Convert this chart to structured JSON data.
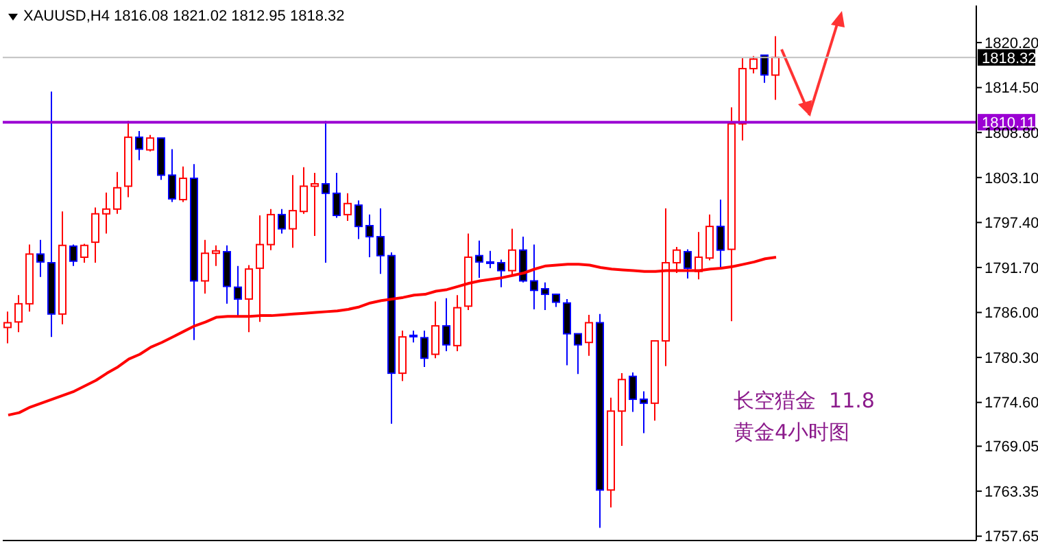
{
  "chart_data": {
    "type": "candlestick",
    "title": "XAUUSD,H4 1816.08 1821.02 1812.95 1818.32",
    "categories": [
      null,
      null,
      null,
      null,
      null,
      null,
      null,
      null,
      null,
      null,
      null,
      null,
      null,
      null,
      null,
      null,
      null,
      null,
      null,
      null,
      null,
      null,
      null,
      null,
      null,
      null,
      null,
      null,
      null,
      null,
      null,
      null,
      null,
      null,
      null,
      null,
      null,
      null,
      null,
      null,
      null,
      null,
      null,
      null,
      null,
      null,
      null,
      null,
      null,
      null,
      null,
      null,
      null,
      null,
      null,
      null,
      null,
      null,
      null,
      null,
      null,
      null,
      null,
      null,
      null,
      null,
      null,
      null,
      null,
      null,
      null
    ],
    "ohlc": [
      [
        1784.1,
        1786.1,
        1782.1,
        1784.7
      ],
      [
        1784.8,
        1788.2,
        1783.5,
        1787.1
      ],
      [
        1787.1,
        1794.6,
        1786.1,
        1793.4
      ],
      [
        1793.4,
        1795.2,
        1790.5,
        1792.4
      ],
      [
        1792.3,
        1814.0,
        1782.9,
        1785.8
      ],
      [
        1785.8,
        1798.8,
        1784.5,
        1794.5
      ],
      [
        1794.4,
        1794.6,
        1791.9,
        1792.5
      ],
      [
        1793.0,
        1794.7,
        1792.3,
        1794.5
      ],
      [
        1794.9,
        1799.3,
        1792.3,
        1798.5
      ],
      [
        1798.5,
        1801.2,
        1796.0,
        1799.1
      ],
      [
        1799.1,
        1803.8,
        1798.5,
        1801.8
      ],
      [
        1802.0,
        1810.3,
        1800.6,
        1808.2
      ],
      [
        1808.2,
        1809.0,
        1805.3,
        1806.7
      ],
      [
        1806.6,
        1808.5,
        1806.4,
        1808.1
      ],
      [
        1808.1,
        1808.1,
        1802.8,
        1803.4
      ],
      [
        1803.4,
        1806.7,
        1800.0,
        1800.4
      ],
      [
        1800.3,
        1804.5,
        1800.0,
        1803.0
      ],
      [
        1803.0,
        1804.8,
        1782.5,
        1790.0
      ],
      [
        1790.0,
        1795.2,
        1788.4,
        1793.5
      ],
      [
        1793.5,
        1794.5,
        1791.9,
        1793.8
      ],
      [
        1793.7,
        1794.5,
        1787.1,
        1789.3
      ],
      [
        1789.2,
        1791.9,
        1785.5,
        1787.7
      ],
      [
        1787.7,
        1792.0,
        1783.5,
        1791.5
      ],
      [
        1791.6,
        1798.3,
        1784.8,
        1794.6
      ],
      [
        1794.6,
        1799.1,
        1793.9,
        1798.4
      ],
      [
        1798.4,
        1799.1,
        1796.0,
        1796.6
      ],
      [
        1796.6,
        1803.4,
        1794.2,
        1798.9
      ],
      [
        1798.8,
        1804.4,
        1798.5,
        1802.0
      ],
      [
        1802.0,
        1803.7,
        1795.7,
        1802.3
      ],
      [
        1802.3,
        1810.3,
        1792.3,
        1801.1
      ],
      [
        1801.1,
        1803.7,
        1798.0,
        1798.3
      ],
      [
        1798.4,
        1801.1,
        1797.6,
        1799.8
      ],
      [
        1799.6,
        1800.2,
        1795.3,
        1796.9
      ],
      [
        1797.0,
        1798.4,
        1793.0,
        1795.6
      ],
      [
        1795.6,
        1799.2,
        1790.9,
        1793.2
      ],
      [
        1793.2,
        1793.6,
        1771.9,
        1778.3
      ],
      [
        1778.3,
        1783.7,
        1777.3,
        1782.9
      ],
      [
        1783.1,
        1783.7,
        1782.2,
        1783.0
      ],
      [
        1782.8,
        1783.7,
        1779.1,
        1780.2
      ],
      [
        1780.7,
        1787.4,
        1780.2,
        1784.3
      ],
      [
        1784.3,
        1787.8,
        1781.1,
        1781.9
      ],
      [
        1781.8,
        1788.2,
        1781.1,
        1786.6
      ],
      [
        1786.8,
        1796.0,
        1786.3,
        1793.0
      ],
      [
        1793.2,
        1795.1,
        1790.4,
        1792.4
      ],
      [
        1792.4,
        1793.8,
        1791.6,
        1792.3
      ],
      [
        1792.3,
        1792.7,
        1789.2,
        1791.3
      ],
      [
        1791.3,
        1796.6,
        1790.7,
        1793.9
      ],
      [
        1793.9,
        1795.6,
        1789.8,
        1790.0
      ],
      [
        1790.0,
        1794.6,
        1786.4,
        1788.8
      ],
      [
        1789.0,
        1789.8,
        1786.3,
        1788.3
      ],
      [
        1788.3,
        1788.4,
        1786.7,
        1787.3
      ],
      [
        1787.2,
        1787.7,
        1779.3,
        1783.3
      ],
      [
        1783.3,
        1783.3,
        1778.2,
        1781.9
      ],
      [
        1782.2,
        1785.7,
        1780.5,
        1784.7
      ],
      [
        1784.7,
        1785.8,
        1758.7,
        1763.5
      ],
      [
        1763.5,
        1775.2,
        1761.3,
        1773.5
      ],
      [
        1773.5,
        1778.3,
        1769.1,
        1777.5
      ],
      [
        1777.9,
        1778.4,
        1773.4,
        1775.0
      ],
      [
        1775.0,
        1776.0,
        1770.7,
        1774.5
      ],
      [
        1774.5,
        1782.4,
        1772.3,
        1782.4
      ],
      [
        1782.4,
        1799.2,
        1779.2,
        1792.3
      ],
      [
        1792.3,
        1794.3,
        1791.0,
        1793.9
      ],
      [
        1793.7,
        1794.0,
        1790.3,
        1791.6
      ],
      [
        1791.2,
        1796.2,
        1790.2,
        1793.0
      ],
      [
        1792.9,
        1798.4,
        1792.6,
        1796.9
      ],
      [
        1796.9,
        1800.3,
        1791.6,
        1793.9
      ],
      [
        1794.0,
        1812.0,
        1784.9,
        1809.9
      ],
      [
        1809.9,
        1818.2,
        1807.8,
        1816.9
      ],
      [
        1816.9,
        1818.5,
        1816.3,
        1818.1
      ],
      [
        1818.6,
        1818.6,
        1815.1,
        1816.1
      ],
      [
        1816.08,
        1821.02,
        1812.95,
        1818.32
      ]
    ],
    "colors": [
      "#ff0000",
      "#ff0000",
      "#ff0000",
      "#0000ff",
      "#0000ff",
      "#ff0000",
      "#0000ff",
      "#ff0000",
      "#ff0000",
      "#ff0000",
      "#ff0000",
      "#ff0000",
      "#0000ff",
      "#ff0000",
      "#0000ff",
      "#0000ff",
      "#ff0000",
      "#0000ff",
      "#ff0000",
      "#ff0000",
      "#0000ff",
      "#0000ff",
      "#ff0000",
      "#ff0000",
      "#ff0000",
      "#0000ff",
      "#ff0000",
      "#ff0000",
      "#ff0000",
      "#0000ff",
      "#0000ff",
      "#ff0000",
      "#0000ff",
      "#0000ff",
      "#0000ff",
      "#0000ff",
      "#ff0000",
      "#0000ff",
      "#0000ff",
      "#ff0000",
      "#0000ff",
      "#ff0000",
      "#ff0000",
      "#0000ff",
      "#0000ff",
      "#0000ff",
      "#ff0000",
      "#0000ff",
      "#0000ff",
      "#0000ff",
      "#0000ff",
      "#0000ff",
      "#0000ff",
      "#ff0000",
      "#0000ff",
      "#ff0000",
      "#ff0000",
      "#0000ff",
      "#0000ff",
      "#ff0000",
      "#ff0000",
      "#ff0000",
      "#0000ff",
      "#ff0000",
      "#ff0000",
      "#0000ff",
      "#ff0000",
      "#ff0000",
      "#ff0000",
      "#0000ff",
      "#ff0000"
    ],
    "series": [
      {
        "type": "line",
        "color": "#ff0000",
        "values": [
          1773.0,
          1773.3,
          1774.0,
          1774.5,
          1775.0,
          1775.5,
          1776.0,
          1776.7,
          1777.4,
          1778.3,
          1779.1,
          1780.1,
          1780.7,
          1781.6,
          1782.2,
          1782.9,
          1783.6,
          1784.3,
          1784.8,
          1785.4,
          1785.5,
          1785.5,
          1785.5,
          1785.6,
          1785.6,
          1785.7,
          1785.8,
          1785.9,
          1786.0,
          1786.1,
          1786.2,
          1786.4,
          1786.7,
          1787.2,
          1787.5,
          1787.7,
          1787.9,
          1788.2,
          1788.3,
          1788.7,
          1788.9,
          1789.3,
          1789.7,
          1790.0,
          1790.2,
          1790.4,
          1790.7,
          1791.0,
          1791.5,
          1791.9,
          1792.0,
          1792.1,
          1792.1,
          1792.0,
          1791.7,
          1791.5,
          1791.4,
          1791.3,
          1791.2,
          1791.2,
          1791.3,
          1791.3,
          1791.3,
          1791.3,
          1791.5,
          1791.6,
          1791.8,
          1792.1,
          1792.4,
          1792.8,
          1793.0
        ]
      }
    ],
    "ylim": [
      1757.1,
      1824.9
    ],
    "yticks": [
      {
        "value": 1820.2,
        "label": "1820.20"
      },
      {
        "value": 1814.5,
        "label": "1814.50"
      },
      {
        "value": 1808.8,
        "label": "1808.80"
      },
      {
        "value": 1803.1,
        "label": "1803.10"
      },
      {
        "value": 1797.4,
        "label": "1797.40"
      },
      {
        "value": 1791.7,
        "label": "1791.70"
      },
      {
        "value": 1786,
        "label": "1786.00"
      },
      {
        "value": 1780.3,
        "label": "1780.30"
      },
      {
        "value": 1774.6,
        "label": "1774.60"
      },
      {
        "value": 1769.05,
        "label": "1769.05"
      },
      {
        "value": 1763.35,
        "label": "1763.35"
      },
      {
        "value": 1757.65,
        "label": "1757.65"
      }
    ],
    "ref_lines": [
      {
        "axis": "y",
        "value": 1810.11,
        "label": "1810.11",
        "color": "#9b00d3"
      },
      {
        "axis": "y",
        "value": 1818.32,
        "label": "1818.32",
        "color": "#c0c0c0"
      }
    ],
    "annotations": [
      "长空猎金  11.8",
      "黄金4小时图"
    ],
    "tick_labels": "y",
    "grid": false,
    "legend": false
  }
}
